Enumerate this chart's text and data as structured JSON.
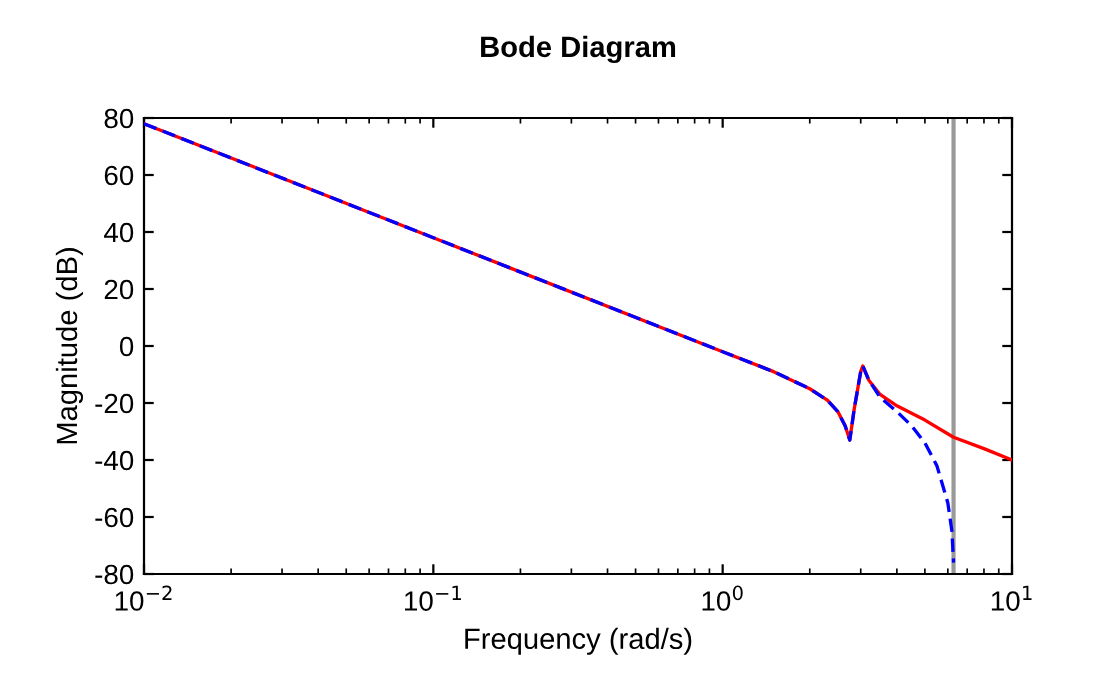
{
  "chart_data": {
    "type": "line",
    "title": "Bode Diagram",
    "xlabel": "Frequency (rad/s)",
    "ylabel": "Magnitude (dB)",
    "log": "x",
    "xlim": [
      0.01,
      10
    ],
    "xticks": [
      {
        "value": 0.01,
        "label": "10$^{−2}$"
      },
      {
        "value": 0.1,
        "label": "10$^{−1}$"
      },
      {
        "value": 1,
        "label": "10$^{0}$"
      },
      {
        "value": 10,
        "label": "10$^{1}$"
      }
    ],
    "ylim": [
      -80,
      80
    ],
    "yticks": [
      -80,
      -60,
      -40,
      -20,
      0,
      20,
      40,
      60,
      80
    ],
    "grid": false,
    "legend": false,
    "marker": "none",
    "series": [
      {
        "color": "#ff0000",
        "line_style": "solid",
        "x": [
          0.01,
          0.1,
          1,
          1.5,
          2,
          2.3,
          2.5,
          2.65,
          2.75,
          2.85,
          3.0,
          3.05,
          3.2,
          3.5,
          4,
          5,
          6.28,
          8,
          10
        ],
        "values": [
          78,
          38,
          -2,
          -9,
          -15,
          -19,
          -23,
          -28,
          -33,
          -22,
          -9,
          -7,
          -12,
          -17,
          -21,
          -26,
          -32,
          -36,
          -40
        ]
      },
      {
        "color": "#0000ff",
        "line_style": "dashed",
        "x": [
          0.01,
          0.1,
          1,
          1.5,
          2,
          2.3,
          2.5,
          2.65,
          2.75,
          2.85,
          3.0,
          3.05,
          3.2,
          3.5,
          4,
          4.5,
          5,
          5.5,
          6,
          6.2,
          6.28
        ],
        "values": [
          78,
          38,
          -2,
          -9,
          -15,
          -19,
          -23,
          -28,
          -33,
          -22,
          -9,
          -7,
          -12,
          -18,
          -23,
          -28,
          -34,
          -42,
          -55,
          -65,
          -76
        ]
      }
    ],
    "ref_lines": [
      {
        "axis": "x",
        "value": 6.28,
        "color": "#999999",
        "line_style": "solid"
      }
    ]
  }
}
